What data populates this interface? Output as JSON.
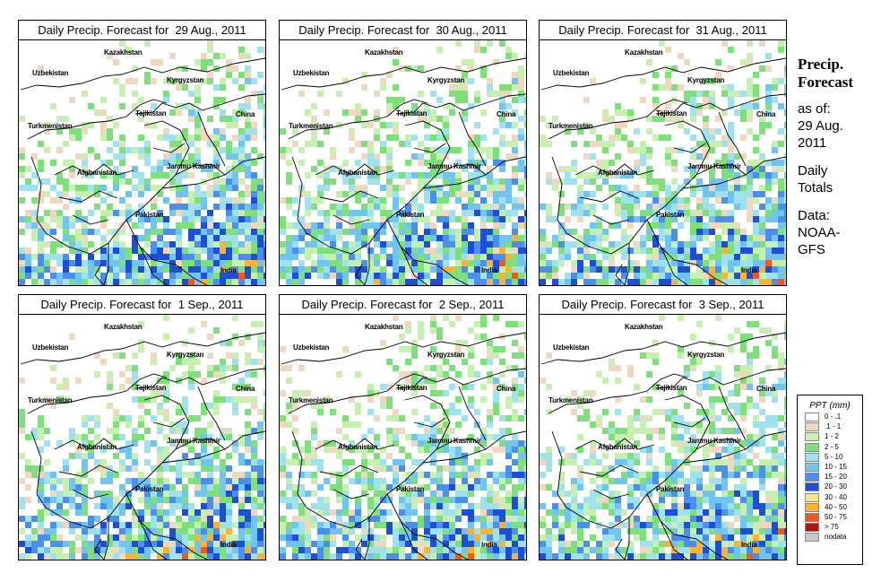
{
  "panels": [
    {
      "title": "Daily Precip. Forecast for  29 Aug., 2011"
    },
    {
      "title": "Daily Precip. Forecast for  30 Aug., 2011"
    },
    {
      "title": "Daily Precip. Forecast for  31 Aug., 2011"
    },
    {
      "title": "Daily Precip. Forecast for  1 Sep., 2011"
    },
    {
      "title": "Daily Precip. Forecast for  2 Sep., 2011"
    },
    {
      "title": "Daily Precip. Forecast for  3 Sep., 2011"
    }
  ],
  "map_labels": {
    "kazakhstan": "Kazakhstan",
    "uzbekistan": "Uzbekistan",
    "kyrgyzstan": "Kyrgyzstan",
    "tajikistan": "Tajikistan",
    "turkmenistan": "Turkmenistan",
    "china": "China",
    "afghanistan": "Afghanistan",
    "jammu_kashmir": "Jammu Kashmir",
    "pakistan": "Pakistan",
    "india": "India"
  },
  "sidebar": {
    "title_line1": "Precip.",
    "title_line2": "Forecast",
    "asof_line1": "as of:",
    "asof_line2": "29 Aug.",
    "asof_line3": "2011",
    "daily_line1": "Daily",
    "daily_line2": "Totals",
    "data_line1": "Data:",
    "data_line2": "NOAA-",
    "data_line3": "GFS"
  },
  "legend": {
    "title": "PPT (mm)",
    "items": [
      {
        "label": "0 - .1",
        "color": "#ffffff"
      },
      {
        "label": ".1 - 1",
        "color": "#eed9c0"
      },
      {
        "label": "1 - 2",
        "color": "#c6f0b0"
      },
      {
        "label": "2 - 5",
        "color": "#7ee07a"
      },
      {
        "label": "5 - 10",
        "color": "#9fe2ee"
      },
      {
        "label": "10 - 15",
        "color": "#6fc4f0"
      },
      {
        "label": "15 - 20",
        "color": "#4a8ff0"
      },
      {
        "label": "20 - 30",
        "color": "#1c4fd6"
      },
      {
        "label": "30 - 40",
        "color": "#f6e48c"
      },
      {
        "label": "40 - 50",
        "color": "#f9b233"
      },
      {
        "label": "50 - 75",
        "color": "#f05a1c"
      },
      {
        "label": "> 75",
        "color": "#b4140c"
      },
      {
        "label": "nodata",
        "color": "#c8c8c8"
      }
    ]
  }
}
